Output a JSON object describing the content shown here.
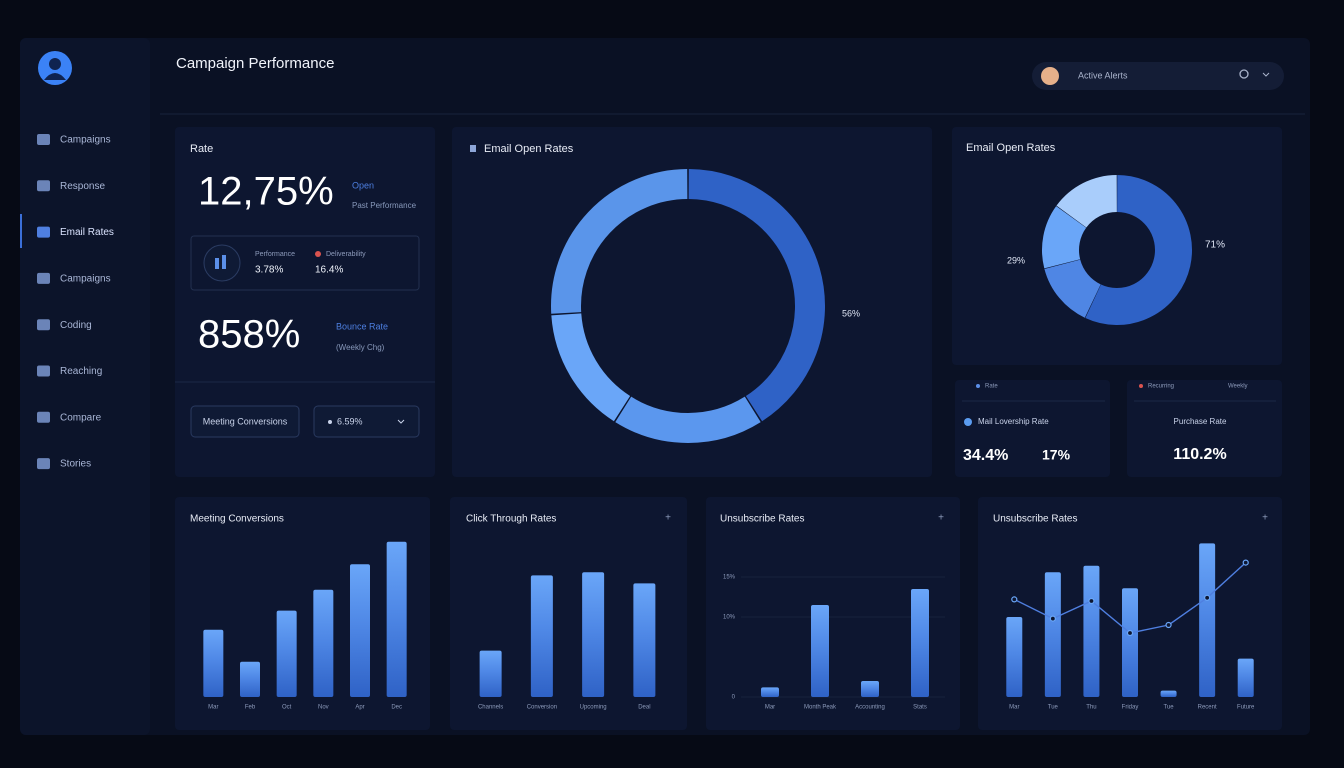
{
  "sidebar": {
    "nav": [
      "Campaigns",
      "Response",
      "Email Rates",
      "Campaigns",
      "Coding",
      "Reaching",
      "Compare",
      "Stories"
    ]
  },
  "header": {
    "title": "Campaign Performance",
    "search": "Active Alerts"
  },
  "rate_card": {
    "title": "Rate",
    "primary": "12,75%",
    "primary_tag": "Open",
    "primary_note": "Past Performance",
    "performance_label": "Performance",
    "performance_value": "3.78%",
    "deliverability_label": "Deliverability",
    "deliverability_value": "16.4%",
    "secondary": "858%",
    "secondary_tag": "Bounce Rate",
    "secondary_note": "(Weekly Chg)",
    "button": "Meeting Conversions",
    "dropdown": "6.59%"
  },
  "open_rates_main": {
    "title": "Email Open Rates",
    "label": "56%",
    "values": [
      41,
      18,
      15,
      26
    ],
    "colors": [
      "#2f62c6",
      "#5b97ee",
      "#6aa6f8",
      "#5a95ea"
    ]
  },
  "open_rates_side": {
    "title": "Email Open Rates",
    "label_right": "71%",
    "label_left": "29%",
    "values": [
      57,
      14,
      14,
      15
    ],
    "colors": [
      "#2f62c6",
      "#4f86e4",
      "#6aa6f8",
      "#a9cdfb"
    ]
  },
  "delivery_card": {
    "legend": "Rate",
    "title": "Mail Lovership Rate",
    "value1": "34.4%",
    "value2": "17%"
  },
  "purchase_card": {
    "legend1": "Recurring",
    "legend2": "Weekly",
    "title": "Purchase Rate",
    "value": "110.2%"
  },
  "charts": [
    {
      "title": "Meeting Conversions",
      "categories": [
        "Mar",
        "Feb",
        "Oct",
        "Nov",
        "Apr",
        "Dec"
      ],
      "values": [
        42,
        22,
        54,
        67,
        83,
        97
      ],
      "ylim": [
        0,
        100
      ]
    },
    {
      "title": "Click Through Rates",
      "categories": [
        "Channels",
        "Conversion",
        "Upcoming",
        "Deal"
      ],
      "values": [
        29,
        76,
        78,
        71
      ],
      "ylim": [
        0,
        100
      ]
    },
    {
      "title": "Unsubscribe Rates",
      "categories": [
        "Mar",
        "Month Peak",
        "Accounting",
        "Stats"
      ],
      "values": [
        1.2,
        11.5,
        2,
        13.5
      ],
      "ylim": [
        0,
        20
      ],
      "yticks": [
        0,
        {
          "value": 10,
          "label": "10%"
        },
        {
          "value": 15,
          "label": "15%"
        }
      ]
    },
    {
      "title": "Unsubscribe Rates",
      "categories": [
        "Mar",
        "Tue",
        "Thu",
        "Friday",
        "Tue",
        "Recent",
        "Future"
      ],
      "values": [
        50,
        78,
        82,
        68,
        4,
        96,
        24
      ],
      "line_values": [
        61,
        49,
        60,
        40,
        45,
        62,
        84
      ],
      "ylim": [
        0,
        100
      ]
    }
  ]
}
